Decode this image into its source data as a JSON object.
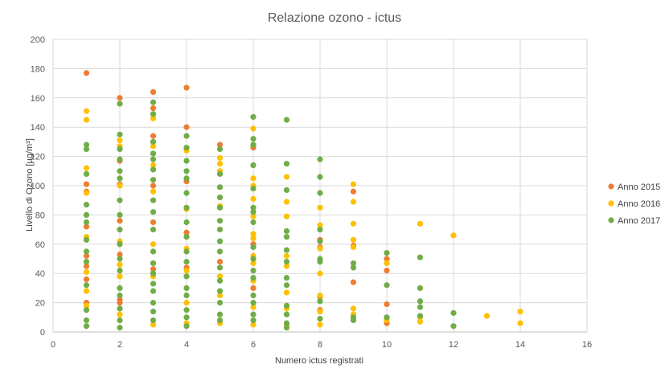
{
  "chart_data": {
    "type": "scatter",
    "title": "Relazione ozono - ictus",
    "xlabel": "Numero  ictus registrati",
    "ylabel": "Livello di Ozono [µg/m³]",
    "xlim": [
      0,
      16
    ],
    "ylim": [
      0,
      200
    ],
    "xticks": [
      "0",
      "2",
      "4",
      "6",
      "8",
      "10",
      "12",
      "14",
      "16"
    ],
    "yticks": [
      "0",
      "20",
      "40",
      "60",
      "80",
      "100",
      "120",
      "140",
      "160",
      "180",
      "200"
    ],
    "grid": true,
    "legend_position": "right",
    "series": [
      {
        "name": "Anno 2015",
        "color": "#ED7D31",
        "points": [
          [
            1,
            177
          ],
          [
            1,
            101
          ],
          [
            1,
            96
          ],
          [
            1,
            72
          ],
          [
            1,
            52
          ],
          [
            1,
            45
          ],
          [
            1,
            36
          ],
          [
            1,
            20
          ],
          [
            2,
            160
          ],
          [
            2,
            117
          ],
          [
            2,
            101
          ],
          [
            2,
            76
          ],
          [
            2,
            53
          ],
          [
            2,
            22
          ],
          [
            2,
            20
          ],
          [
            3,
            164
          ],
          [
            3,
            153
          ],
          [
            3,
            134
          ],
          [
            3,
            100
          ],
          [
            3,
            75
          ],
          [
            3,
            43
          ],
          [
            4,
            167
          ],
          [
            4,
            140
          ],
          [
            4,
            103
          ],
          [
            4,
            68
          ],
          [
            4,
            44
          ],
          [
            5,
            128
          ],
          [
            5,
            48
          ],
          [
            6,
            126
          ],
          [
            6,
            60
          ],
          [
            6,
            30
          ],
          [
            8,
            63
          ],
          [
            8,
            58
          ],
          [
            8,
            24
          ],
          [
            8,
            15
          ],
          [
            9,
            96
          ],
          [
            9,
            59
          ],
          [
            9,
            34
          ],
          [
            10,
            50
          ],
          [
            10,
            42
          ],
          [
            10,
            19
          ],
          [
            10,
            6
          ]
        ]
      },
      {
        "name": "Anno 2016",
        "color": "#FFC000",
        "points": [
          [
            1,
            151
          ],
          [
            1,
            145
          ],
          [
            1,
            112
          ],
          [
            1,
            95
          ],
          [
            1,
            65
          ],
          [
            1,
            41
          ],
          [
            1,
            28
          ],
          [
            1,
            18
          ],
          [
            2,
            131
          ],
          [
            2,
            127
          ],
          [
            2,
            100
          ],
          [
            2,
            62
          ],
          [
            2,
            46
          ],
          [
            2,
            38
          ],
          [
            2,
            12
          ],
          [
            3,
            146
          ],
          [
            3,
            127
          ],
          [
            3,
            114
          ],
          [
            3,
            96
          ],
          [
            3,
            60
          ],
          [
            3,
            38
          ],
          [
            3,
            5
          ],
          [
            4,
            124
          ],
          [
            4,
            84
          ],
          [
            4,
            57
          ],
          [
            4,
            42
          ],
          [
            4,
            20
          ],
          [
            4,
            6
          ],
          [
            5,
            119
          ],
          [
            5,
            115
          ],
          [
            5,
            110
          ],
          [
            5,
            86
          ],
          [
            5,
            38
          ],
          [
            5,
            25
          ],
          [
            5,
            6
          ],
          [
            6,
            139
          ],
          [
            6,
            105
          ],
          [
            6,
            100
          ],
          [
            6,
            91
          ],
          [
            6,
            79
          ],
          [
            6,
            67
          ],
          [
            6,
            64
          ],
          [
            6,
            52
          ],
          [
            6,
            47
          ],
          [
            6,
            35
          ],
          [
            6,
            17
          ],
          [
            6,
            5
          ],
          [
            7,
            106
          ],
          [
            7,
            89
          ],
          [
            7,
            79
          ],
          [
            7,
            52
          ],
          [
            7,
            45
          ],
          [
            7,
            27
          ],
          [
            7,
            16
          ],
          [
            7,
            5
          ],
          [
            8,
            85
          ],
          [
            8,
            73
          ],
          [
            8,
            57
          ],
          [
            8,
            40
          ],
          [
            8,
            25
          ],
          [
            8,
            14
          ],
          [
            8,
            5
          ],
          [
            9,
            101
          ],
          [
            9,
            89
          ],
          [
            9,
            74
          ],
          [
            9,
            63
          ],
          [
            9,
            58
          ],
          [
            9,
            16
          ],
          [
            9,
            12
          ],
          [
            10,
            47
          ],
          [
            10,
            8
          ],
          [
            11,
            74
          ],
          [
            11,
            10
          ],
          [
            11,
            7
          ],
          [
            12,
            66
          ],
          [
            13,
            11
          ],
          [
            14,
            14
          ],
          [
            14,
            6
          ]
        ]
      },
      {
        "name": "Anno 2017",
        "color": "#70AD47",
        "points": [
          [
            1,
            128
          ],
          [
            1,
            125
          ],
          [
            1,
            108
          ],
          [
            1,
            87
          ],
          [
            1,
            80
          ],
          [
            1,
            75
          ],
          [
            1,
            63
          ],
          [
            1,
            55
          ],
          [
            1,
            48
          ],
          [
            1,
            32
          ],
          [
            1,
            15
          ],
          [
            1,
            8
          ],
          [
            1,
            4
          ],
          [
            2,
            156
          ],
          [
            2,
            135
          ],
          [
            2,
            125
          ],
          [
            2,
            118
          ],
          [
            2,
            110
          ],
          [
            2,
            105
          ],
          [
            2,
            90
          ],
          [
            2,
            80
          ],
          [
            2,
            70
          ],
          [
            2,
            60
          ],
          [
            2,
            50
          ],
          [
            2,
            42
          ],
          [
            2,
            30
          ],
          [
            2,
            25
          ],
          [
            2,
            16
          ],
          [
            2,
            8
          ],
          [
            2,
            3
          ],
          [
            3,
            157
          ],
          [
            3,
            149
          ],
          [
            3,
            130
          ],
          [
            3,
            122
          ],
          [
            3,
            118
          ],
          [
            3,
            111
          ],
          [
            3,
            104
          ],
          [
            3,
            90
          ],
          [
            3,
            82
          ],
          [
            3,
            70
          ],
          [
            3,
            55
          ],
          [
            3,
            47
          ],
          [
            3,
            40
          ],
          [
            3,
            33
          ],
          [
            3,
            28
          ],
          [
            3,
            20
          ],
          [
            3,
            14
          ],
          [
            3,
            8
          ],
          [
            4,
            134
          ],
          [
            4,
            126
          ],
          [
            4,
            117
          ],
          [
            4,
            110
          ],
          [
            4,
            105
          ],
          [
            4,
            95
          ],
          [
            4,
            85
          ],
          [
            4,
            75
          ],
          [
            4,
            65
          ],
          [
            4,
            55
          ],
          [
            4,
            48
          ],
          [
            4,
            38
          ],
          [
            4,
            30
          ],
          [
            4,
            25
          ],
          [
            4,
            15
          ],
          [
            4,
            10
          ],
          [
            4,
            4
          ],
          [
            5,
            125
          ],
          [
            5,
            108
          ],
          [
            5,
            99
          ],
          [
            5,
            92
          ],
          [
            5,
            85
          ],
          [
            5,
            76
          ],
          [
            5,
            70
          ],
          [
            5,
            62
          ],
          [
            5,
            55
          ],
          [
            5,
            44
          ],
          [
            5,
            35
          ],
          [
            5,
            28
          ],
          [
            5,
            20
          ],
          [
            5,
            12
          ],
          [
            5,
            8
          ],
          [
            6,
            147
          ],
          [
            6,
            132
          ],
          [
            6,
            128
          ],
          [
            6,
            114
          ],
          [
            6,
            98
          ],
          [
            6,
            85
          ],
          [
            6,
            82
          ],
          [
            6,
            75
          ],
          [
            6,
            58
          ],
          [
            6,
            50
          ],
          [
            6,
            42
          ],
          [
            6,
            37
          ],
          [
            6,
            25
          ],
          [
            6,
            20
          ],
          [
            6,
            12
          ],
          [
            6,
            8
          ],
          [
            7,
            145
          ],
          [
            7,
            115
          ],
          [
            7,
            97
          ],
          [
            7,
            69
          ],
          [
            7,
            65
          ],
          [
            7,
            56
          ],
          [
            7,
            48
          ],
          [
            7,
            37
          ],
          [
            7,
            32
          ],
          [
            7,
            18
          ],
          [
            7,
            12
          ],
          [
            7,
            6
          ],
          [
            7,
            3
          ],
          [
            8,
            118
          ],
          [
            8,
            106
          ],
          [
            8,
            95
          ],
          [
            8,
            70
          ],
          [
            8,
            62
          ],
          [
            8,
            50
          ],
          [
            8,
            48
          ],
          [
            8,
            21
          ],
          [
            8,
            9
          ],
          [
            9,
            47
          ],
          [
            9,
            44
          ],
          [
            9,
            10
          ],
          [
            9,
            8
          ],
          [
            10,
            54
          ],
          [
            10,
            32
          ],
          [
            10,
            10
          ],
          [
            11,
            51
          ],
          [
            11,
            30
          ],
          [
            11,
            21
          ],
          [
            11,
            17
          ],
          [
            11,
            11
          ],
          [
            12,
            13
          ],
          [
            12,
            4
          ]
        ]
      }
    ]
  }
}
